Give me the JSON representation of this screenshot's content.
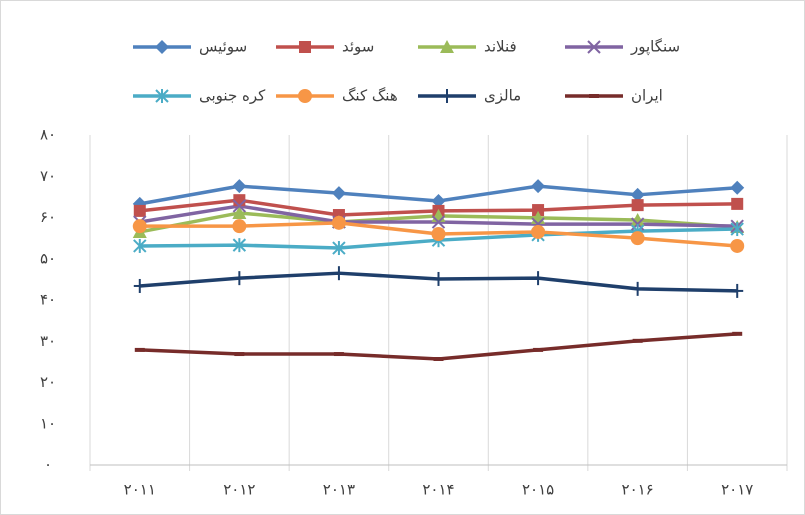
{
  "chart_data": {
    "type": "line",
    "categories": [
      "۲۰۱۱",
      "۲۰۱۲",
      "۲۰۱۳",
      "۲۰۱۴",
      "۲۰۱۵",
      "۲۰۱۶",
      "۲۰۱۷"
    ],
    "series": [
      {
        "name": "سوئیس",
        "color": "#4f81bd",
        "marker": "diamond",
        "values": [
          63.3,
          67.6,
          65.9,
          64.0,
          67.6,
          65.5,
          67.2
        ]
      },
      {
        "name": "سوئد",
        "color": "#c0504d",
        "marker": "square",
        "values": [
          61.6,
          64.2,
          60.6,
          61.6,
          61.8,
          63.0,
          63.3
        ]
      },
      {
        "name": "فنلاند",
        "color": "#9bbb59",
        "marker": "triangle",
        "values": [
          56.5,
          61.1,
          58.9,
          60.4,
          59.9,
          59.4,
          57.7
        ]
      },
      {
        "name": "سنگاپور",
        "color": "#8064a2",
        "marker": "x",
        "values": [
          58.9,
          62.8,
          58.9,
          58.9,
          58.4,
          58.4,
          57.9
        ]
      },
      {
        "name": "کره جنوبی",
        "color": "#4bacc6",
        "marker": "star",
        "values": [
          53.1,
          53.3,
          52.6,
          54.5,
          55.8,
          56.7,
          57.2
        ]
      },
      {
        "name": "هنگ کنگ",
        "color": "#f79646",
        "marker": "circle",
        "values": [
          57.9,
          57.9,
          58.7,
          56.0,
          56.5,
          55.0,
          53.1
        ]
      },
      {
        "name": "مالزی",
        "color": "#1f3f6b",
        "marker": "plus",
        "values": [
          43.4,
          45.3,
          46.5,
          45.1,
          45.3,
          42.7,
          42.2
        ]
      },
      {
        "name": "ایران",
        "color": "#772c2a",
        "marker": "dash",
        "values": [
          27.9,
          26.9,
          26.9,
          25.7,
          27.9,
          30.1,
          31.8
        ]
      }
    ],
    "ylim": [
      0,
      80
    ],
    "yticks": [
      {
        "value": 0,
        "label": "۰"
      },
      {
        "value": 10,
        "label": "۱۰"
      },
      {
        "value": 20,
        "label": "۲۰"
      },
      {
        "value": 30,
        "label": "۳۰"
      },
      {
        "value": 40,
        "label": "۴۰"
      },
      {
        "value": 50,
        "label": "۵۰"
      },
      {
        "value": 60,
        "label": "۶۰"
      },
      {
        "value": 70,
        "label": "۷۰"
      },
      {
        "value": 80,
        "label": "۸۰"
      }
    ],
    "grid": true,
    "legend": "top"
  }
}
